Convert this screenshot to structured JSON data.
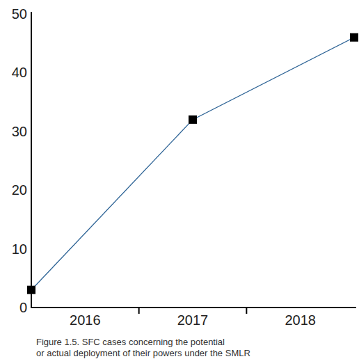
{
  "chart_data": {
    "type": "line",
    "title": "Figure 1.5.  SFC cases concerning the potential\nor actual deployment of their powers under the SMLR",
    "categories": [
      "2016",
      "2017",
      "2018"
    ],
    "values": [
      3,
      32,
      46
    ],
    "color": "#2e6496",
    "marker": "square",
    "ylim": [
      0,
      50
    ],
    "yticks": [
      0,
      10,
      20,
      30,
      40,
      50
    ],
    "grid": false
  }
}
